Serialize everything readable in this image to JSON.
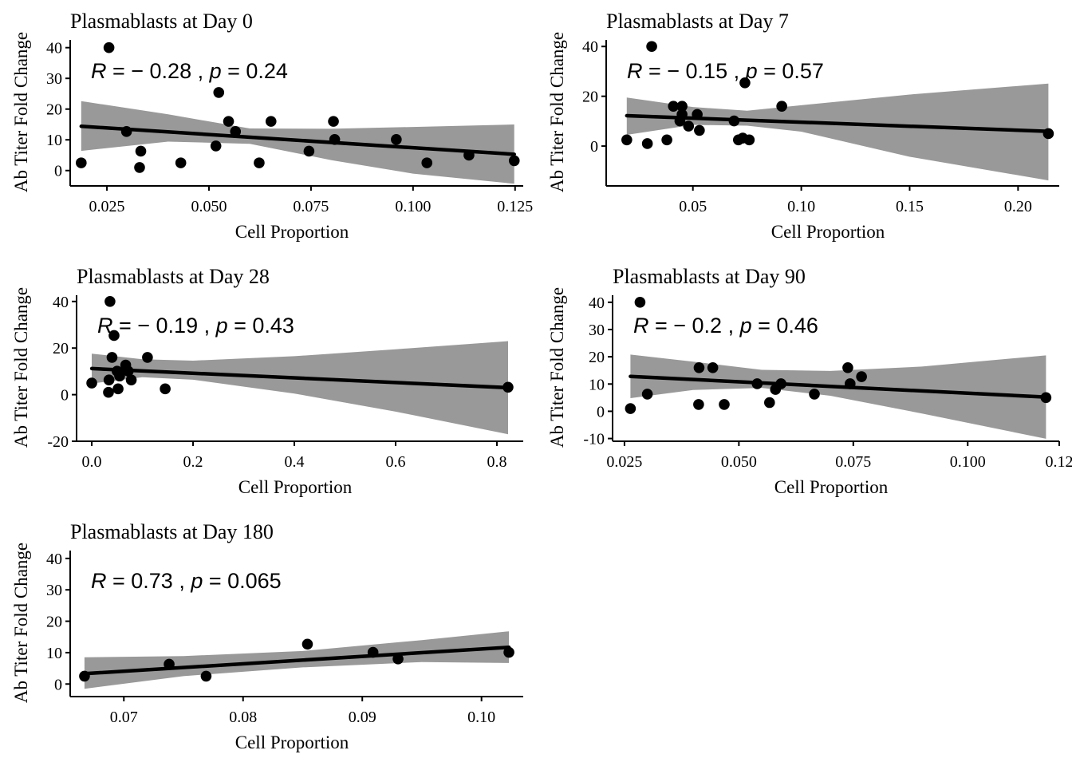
{
  "colors": {
    "point": "#000000",
    "band": "#999999",
    "line": "#000000",
    "axis": "#000000"
  },
  "chart_data": [
    {
      "type": "scatter",
      "title": "Plasmablasts at Day 0",
      "xlabel": "Cell Proportion",
      "ylabel": "Ab Titer Fold Change",
      "xlim": [
        0.016,
        0.127
      ],
      "ylim": [
        -5,
        42
      ],
      "xticks": [
        0.025,
        0.05,
        0.075,
        0.1,
        0.125
      ],
      "xtick_labels": [
        "0.025",
        "0.050",
        "0.075",
        "0.100",
        "0.125"
      ],
      "yticks": [
        0,
        10,
        20,
        30,
        40
      ],
      "ytick_labels": [
        "0",
        "10",
        "20",
        "30",
        "40"
      ],
      "stat": {
        "r_label": "R",
        "r_value": " = − 0.28 , ",
        "p_label": "p",
        "p_value": " = 0.24"
      },
      "points": [
        [
          0.0187,
          2.5
        ],
        [
          0.0255,
          40
        ],
        [
          0.0298,
          12.7
        ],
        [
          0.033,
          1.0
        ],
        [
          0.0333,
          6.3
        ],
        [
          0.0431,
          2.5
        ],
        [
          0.0517,
          8.0
        ],
        [
          0.0524,
          25.4
        ],
        [
          0.0548,
          16.0
        ],
        [
          0.0565,
          12.7
        ],
        [
          0.0623,
          2.5
        ],
        [
          0.0652,
          16.0
        ],
        [
          0.0745,
          6.3
        ],
        [
          0.0805,
          16.0
        ],
        [
          0.0808,
          10.1
        ],
        [
          0.0959,
          10.1
        ],
        [
          0.1034,
          2.5
        ],
        [
          0.1137,
          5.0
        ],
        [
          0.1248,
          3.2
        ]
      ],
      "fit": [
        [
          0.0187,
          14.4
        ],
        [
          0.1248,
          5.3
        ]
      ],
      "band": [
        [
          0.0187,
          6.4,
          22.6
        ],
        [
          0.04,
          9.4,
          18.3
        ],
        [
          0.06,
          8.7,
          13.7
        ],
        [
          0.08,
          3.4,
          13.6
        ],
        [
          0.1,
          -1.0,
          14.2
        ],
        [
          0.1248,
          -4.3,
          15.0
        ]
      ]
    },
    {
      "type": "scatter",
      "title": "Plasmablasts at Day 7",
      "xlabel": "Cell Proportion",
      "ylabel": "Ab Titer Fold Change",
      "xlim": [
        0.01,
        0.219
      ],
      "ylim": [
        -16,
        42
      ],
      "xticks": [
        0.05,
        0.1,
        0.15,
        0.2
      ],
      "xtick_labels": [
        "0.05",
        "0.10",
        "0.15",
        "0.20"
      ],
      "yticks": [
        0,
        20,
        40
      ],
      "ytick_labels": [
        "0",
        "20",
        "40"
      ],
      "stat": {
        "r_label": "R",
        "r_value": " = − 0.15 , ",
        "p_label": "p",
        "p_value": " = 0.57"
      },
      "points": [
        [
          0.0195,
          2.5
        ],
        [
          0.029,
          1.0
        ],
        [
          0.031,
          40
        ],
        [
          0.038,
          2.5
        ],
        [
          0.041,
          16.0
        ],
        [
          0.044,
          10.1
        ],
        [
          0.045,
          12.7
        ],
        [
          0.045,
          16.0
        ],
        [
          0.048,
          8.0
        ],
        [
          0.052,
          12.7
        ],
        [
          0.053,
          6.3
        ],
        [
          0.069,
          10.1
        ],
        [
          0.071,
          2.5
        ],
        [
          0.073,
          3.2
        ],
        [
          0.074,
          25.4
        ],
        [
          0.076,
          2.5
        ],
        [
          0.091,
          16.0
        ],
        [
          0.214,
          5.0
        ]
      ],
      "fit": [
        [
          0.0195,
          12.2
        ],
        [
          0.214,
          5.9
        ]
      ],
      "band": [
        [
          0.0195,
          4.5,
          19.5
        ],
        [
          0.05,
          8.5,
          15.7
        ],
        [
          0.075,
          8.2,
          14.2
        ],
        [
          0.1,
          5.8,
          16.4
        ],
        [
          0.15,
          -4.3,
          20.7
        ],
        [
          0.214,
          -13.8,
          25.1
        ]
      ]
    },
    {
      "type": "scatter",
      "title": "Plasmablasts at Day 28",
      "xlabel": "Cell Proportion",
      "ylabel": "Ab Titer Fold Change",
      "xlim": [
        -0.03,
        0.852
      ],
      "ylim": [
        -20,
        42
      ],
      "xticks": [
        0,
        0.2,
        0.4,
        0.6,
        0.8
      ],
      "xtick_labels": [
        "0.0",
        "0.2",
        "0.4",
        "0.6",
        "0.8"
      ],
      "yticks": [
        -20,
        0,
        20,
        40
      ],
      "ytick_labels": [
        "-20",
        "0",
        "20",
        "40"
      ],
      "stat": {
        "r_label": "R",
        "r_value": " = − 0.19 , ",
        "p_label": "p",
        "p_value": " = 0.43"
      },
      "points": [
        [
          0.0,
          5.0
        ],
        [
          0.033,
          1.0
        ],
        [
          0.034,
          6.3
        ],
        [
          0.036,
          40
        ],
        [
          0.04,
          16.0
        ],
        [
          0.044,
          25.4
        ],
        [
          0.05,
          10.1
        ],
        [
          0.052,
          2.5
        ],
        [
          0.055,
          8.0
        ],
        [
          0.067,
          12.7
        ],
        [
          0.072,
          10.1
        ],
        [
          0.078,
          6.3
        ],
        [
          0.11,
          16.0
        ],
        [
          0.145,
          2.5
        ],
        [
          0.822,
          3.2
        ]
      ],
      "fit": [
        [
          0.0,
          11.2
        ],
        [
          0.822,
          3.0
        ]
      ],
      "band": [
        [
          0.0,
          4.8,
          17.6
        ],
        [
          0.1,
          7.5,
          15.2
        ],
        [
          0.2,
          6.4,
          14.6
        ],
        [
          0.4,
          0.5,
          16.5
        ],
        [
          0.6,
          -7.3,
          19.5
        ],
        [
          0.822,
          -17.0,
          23.0
        ]
      ]
    },
    {
      "type": "scatter",
      "title": "Plasmablasts at Day 90",
      "xlabel": "Cell Proportion",
      "ylabel": "Ab Titer Fold Change",
      "xlim": [
        0.0224,
        0.12
      ],
      "ylim": [
        -11,
        42
      ],
      "xticks": [
        0.025,
        0.05,
        0.075,
        0.1,
        0.12
      ],
      "xtick_labels": [
        "0.025",
        "0.050",
        "0.075",
        "0.100",
        "0.12"
      ],
      "yticks": [
        -10,
        0,
        10,
        20,
        30,
        40
      ],
      "ytick_labels": [
        "-10",
        "0",
        "10",
        "20",
        "30",
        "40"
      ],
      "stat": {
        "r_label": "R",
        "r_value": " = − 0.2 , ",
        "p_label": "p",
        "p_value": " = 0.46"
      },
      "points": [
        [
          0.0263,
          1.0
        ],
        [
          0.0284,
          40
        ],
        [
          0.03,
          6.3
        ],
        [
          0.0412,
          2.5
        ],
        [
          0.0413,
          16.0
        ],
        [
          0.0443,
          16.0
        ],
        [
          0.0468,
          2.5
        ],
        [
          0.054,
          10.1
        ],
        [
          0.0567,
          3.2
        ],
        [
          0.058,
          8.0
        ],
        [
          0.0592,
          10.1
        ],
        [
          0.0665,
          6.3
        ],
        [
          0.0738,
          16.0
        ],
        [
          0.0743,
          10.1
        ],
        [
          0.0768,
          12.7
        ],
        [
          0.1171,
          5.0
        ]
      ],
      "fit": [
        [
          0.0263,
          12.8
        ],
        [
          0.1171,
          5.2
        ]
      ],
      "band": [
        [
          0.0263,
          4.8,
          20.8
        ],
        [
          0.04,
          7.8,
          18.2
        ],
        [
          0.055,
          8.6,
          15.2
        ],
        [
          0.07,
          5.7,
          14.8
        ],
        [
          0.09,
          -0.8,
          16.4
        ],
        [
          0.1171,
          -10.1,
          20.5
        ]
      ]
    },
    {
      "type": "scatter",
      "title": "Plasmablasts at Day 180",
      "xlabel": "Cell Proportion",
      "ylabel": "Ab Titer Fold Change",
      "xlim": [
        0.0655,
        0.1035
      ],
      "ylim": [
        -4,
        42
      ],
      "xticks": [
        0.07,
        0.08,
        0.09,
        0.1
      ],
      "xtick_labels": [
        "0.07",
        "0.08",
        "0.09",
        "0.10"
      ],
      "yticks": [
        0,
        10,
        20,
        30,
        40
      ],
      "ytick_labels": [
        "0",
        "10",
        "20",
        "30",
        "40"
      ],
      "stat": {
        "r_label": "R",
        "r_value": " = 0.73 , ",
        "p_label": "p",
        "p_value": " = 0.065"
      },
      "points": [
        [
          0.0667,
          2.5
        ],
        [
          0.0738,
          6.3
        ],
        [
          0.0769,
          2.5
        ],
        [
          0.0854,
          12.7
        ],
        [
          0.0909,
          10.1
        ],
        [
          0.093,
          8.0
        ],
        [
          0.1023,
          10.1
        ]
      ],
      "fit": [
        [
          0.0667,
          3.3
        ],
        [
          0.1023,
          11.7
        ]
      ],
      "band": [
        [
          0.0667,
          -1.5,
          8.5
        ],
        [
          0.075,
          2.5,
          8.9
        ],
        [
          0.085,
          5.3,
          10.5
        ],
        [
          0.095,
          7.0,
          14.0
        ],
        [
          0.1023,
          6.7,
          16.8
        ]
      ]
    }
  ]
}
